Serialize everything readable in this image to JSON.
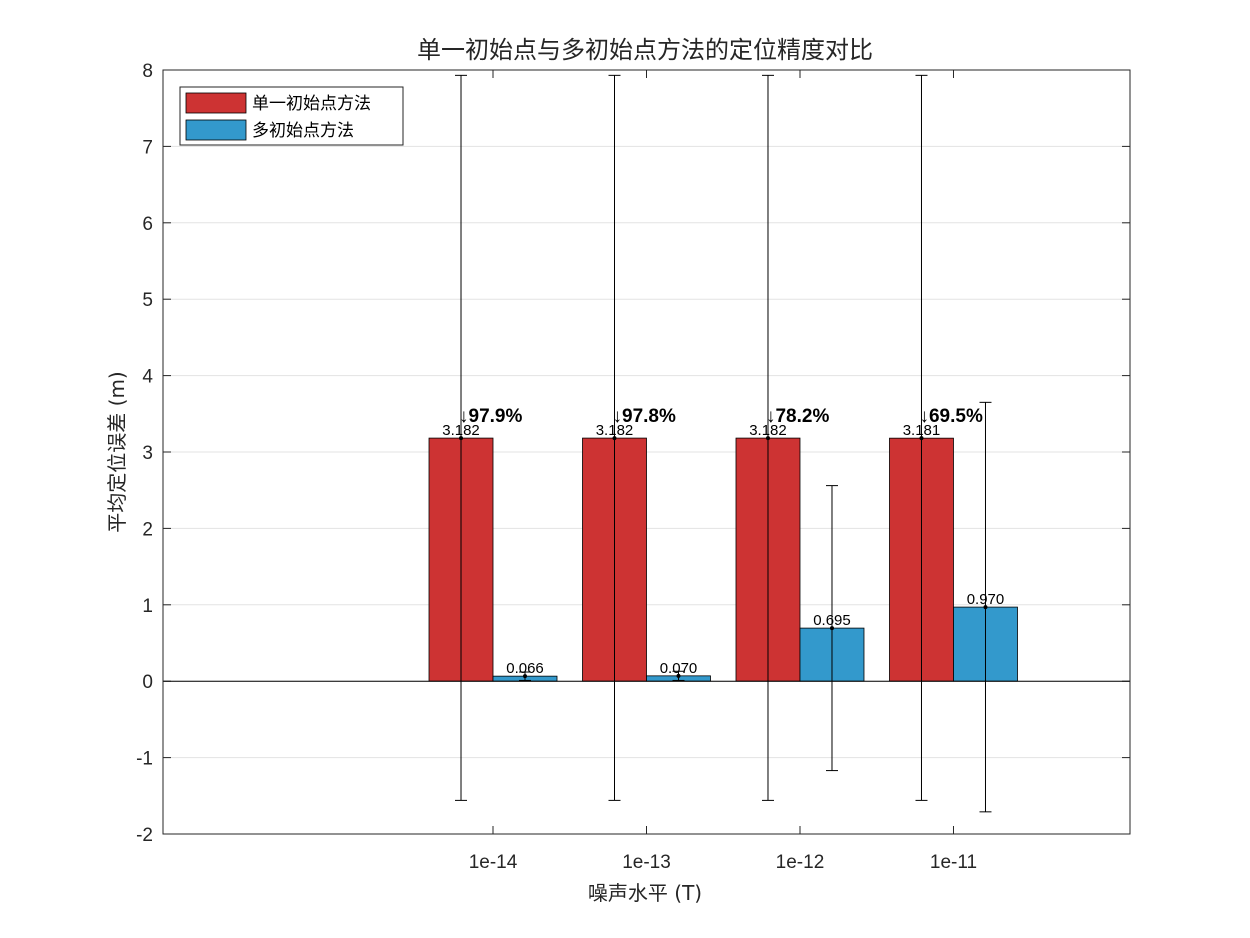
{
  "chart_data": {
    "type": "bar",
    "title": "单一初始点与多初始点方法的定位精度对比",
    "xlabel": "噪声水平 (T)",
    "ylabel": "平均定位误差 (m)",
    "categories": [
      "1e-14",
      "1e-13",
      "1e-12",
      "1e-11"
    ],
    "ylim": [
      -2,
      8
    ],
    "yticks": [
      -2,
      -1,
      0,
      1,
      2,
      3,
      4,
      5,
      6,
      7,
      8
    ],
    "grid": true,
    "legend_position": "top-left",
    "series": [
      {
        "name": "单一初始点方法",
        "color": "#cd3333",
        "values": [
          3.182,
          3.182,
          3.182,
          3.181
        ],
        "value_labels": [
          "3.182",
          "3.182",
          "3.182",
          "3.181"
        ],
        "error_low": [
          -1.56,
          -1.56,
          -1.56,
          -1.56
        ],
        "error_high": [
          7.93,
          7.93,
          7.93,
          7.93
        ]
      },
      {
        "name": "多初始点方法",
        "color": "#3399cc",
        "values": [
          0.066,
          0.07,
          0.695,
          0.97
        ],
        "value_labels": [
          "0.066",
          "0.070",
          "0.695",
          "0.970"
        ],
        "error_low": [
          0.01,
          0.01,
          -1.17,
          -1.71
        ],
        "error_high": [
          0.12,
          0.13,
          2.56,
          3.65
        ]
      }
    ],
    "annotations": [
      "↓97.9%",
      "↓97.8%",
      "↓78.2%",
      "↓69.5%"
    ]
  }
}
